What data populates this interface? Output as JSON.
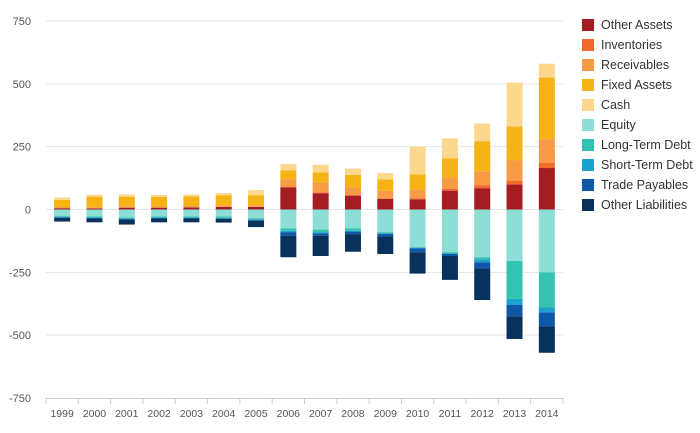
{
  "chart_data": {
    "type": "bar",
    "stacked": true,
    "categories": [
      "1999",
      "2000",
      "2001",
      "2002",
      "2003",
      "2004",
      "2005",
      "2006",
      "2007",
      "2008",
      "2009",
      "2010",
      "2011",
      "2012",
      "2013",
      "2014"
    ],
    "ylim": [
      -750,
      750
    ],
    "yticks": [
      750,
      500,
      250,
      0,
      -250,
      -500,
      -750
    ],
    "ytick_labels": [
      "750",
      "500",
      "250",
      "0",
      "-250",
      "-500",
      "-750"
    ],
    "grid": true,
    "legend_position": "right",
    "series": [
      {
        "name": "Other Assets",
        "color": "#a31d22",
        "values": [
          5,
          4,
          7,
          7,
          8,
          10,
          10,
          88,
          65,
          55,
          42,
          40,
          75,
          85,
          100,
          165
        ]
      },
      {
        "name": "Inventories",
        "color": "#f26a2b",
        "values": [
          1,
          1,
          1,
          1,
          1,
          1,
          1,
          3,
          3,
          3,
          3,
          5,
          8,
          12,
          15,
          20
        ]
      },
      {
        "name": "Receivables",
        "color": "#f89b45",
        "values": [
          4,
          4,
          5,
          4,
          5,
          6,
          6,
          30,
          40,
          30,
          30,
          35,
          45,
          55,
          80,
          95
        ]
      },
      {
        "name": "Fixed Assets",
        "color": "#f6b316",
        "values": [
          28,
          42,
          38,
          38,
          38,
          40,
          40,
          35,
          40,
          50,
          45,
          60,
          75,
          120,
          135,
          245
        ]
      },
      {
        "name": "Cash",
        "color": "#fcd78e",
        "values": [
          10,
          8,
          9,
          8,
          8,
          8,
          20,
          25,
          30,
          25,
          25,
          110,
          80,
          70,
          175,
          55
        ]
      },
      {
        "name": "Equity",
        "color": "#8ddfd5",
        "values": [
          -25,
          -28,
          -32,
          -28,
          -28,
          -28,
          -35,
          -75,
          -80,
          -75,
          -90,
          -150,
          -170,
          -190,
          -205,
          -250
        ]
      },
      {
        "name": "Long-Term Debt",
        "color": "#35c2b0",
        "values": [
          -4,
          -4,
          -4,
          -4,
          -4,
          -5,
          -5,
          -10,
          -10,
          -10,
          -4,
          -3,
          -5,
          -8,
          -150,
          -140
        ]
      },
      {
        "name": "Short-Term Debt",
        "color": "#1ba2cf",
        "values": [
          -2,
          -2,
          -2,
          -2,
          -2,
          -2,
          -2,
          -5,
          -5,
          -3,
          -3,
          -2,
          -2,
          -12,
          -25,
          -20
        ]
      },
      {
        "name": "Trade Payables",
        "color": "#0f58a8",
        "values": [
          -2,
          -2,
          -2,
          -2,
          -2,
          -2,
          -3,
          -15,
          -10,
          -10,
          -10,
          -15,
          -8,
          -25,
          -45,
          -55
        ]
      },
      {
        "name": "Other Liabilities",
        "color": "#08315c",
        "values": [
          -15,
          -15,
          -20,
          -15,
          -15,
          -15,
          -25,
          -85,
          -80,
          -70,
          -70,
          -85,
          -95,
          -125,
          -90,
          -105
        ]
      }
    ]
  }
}
